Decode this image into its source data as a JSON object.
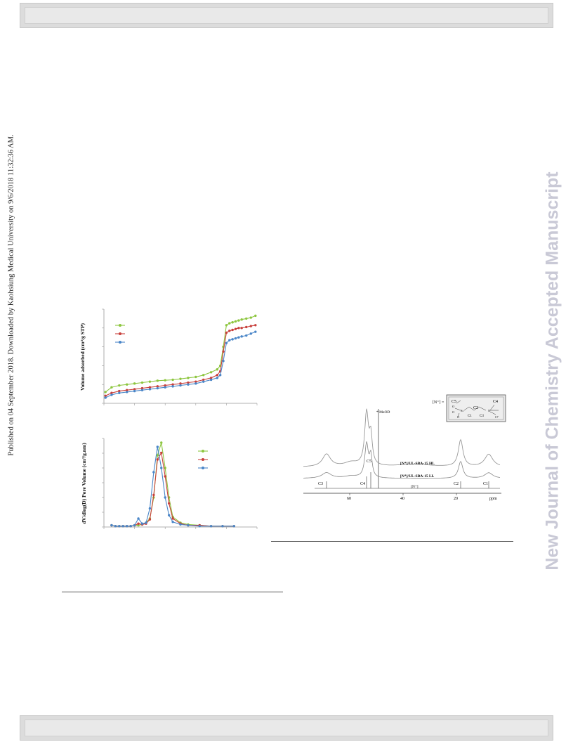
{
  "side_note": "Published on 04 September 2018. Downloaded by Kaohsiung Medical University on 9/6/2018 11:32:36 AM.",
  "watermark": "New Journal of Chemistry Accepted Manuscript",
  "figures": {
    "isotherm": {
      "ylabel": "Volume adsorbed (cm³/g STP)",
      "series_colors": [
        "#8dc63f",
        "#c8403c",
        "#4a86c8"
      ]
    },
    "psd": {
      "ylabel": "dV/dlog(D) Pore Volume (cm³/g.nm)",
      "series_colors": [
        "#8dc63f",
        "#c8403c",
        "#4a86c8"
      ]
    },
    "nmr": {
      "structure_label": "[N⁺] =",
      "atoms": [
        "C5",
        "O",
        "Si",
        "O",
        "O",
        "C2",
        "C1",
        "C3",
        "N",
        "C4",
        "C7"
      ],
      "annotation_meod": "* MeOD",
      "trace_labels": [
        "[N⁺]/UL-SBA-15 HL",
        "[N⁺]/UL-SBA-15 LL"
      ],
      "peak_labels": [
        "C3",
        "C4",
        "C5",
        "[N⁺]",
        "C2",
        "C1"
      ],
      "x_ticks": [
        "60",
        "40",
        "20"
      ],
      "x_unit": "ppm"
    }
  },
  "chart_data": [
    {
      "type": "line",
      "title": "",
      "xlabel": "",
      "ylabel": "Volume adsorbed (cm³/g STP)",
      "xlim": [
        0,
        1
      ],
      "series": [
        {
          "color": "#8dc63f",
          "x": [
            0.01,
            0.05,
            0.1,
            0.15,
            0.2,
            0.25,
            0.3,
            0.35,
            0.4,
            0.45,
            0.5,
            0.55,
            0.6,
            0.65,
            0.7,
            0.74,
            0.76,
            0.78,
            0.8,
            0.82,
            0.84,
            0.86,
            0.88,
            0.9,
            0.93,
            0.96,
            0.99
          ],
          "y": [
            0.12,
            0.17,
            0.19,
            0.2,
            0.21,
            0.22,
            0.23,
            0.24,
            0.245,
            0.25,
            0.26,
            0.27,
            0.28,
            0.3,
            0.33,
            0.36,
            0.4,
            0.6,
            0.83,
            0.85,
            0.86,
            0.87,
            0.88,
            0.89,
            0.9,
            0.91,
            0.93
          ]
        },
        {
          "color": "#c8403c",
          "x": [
            0.01,
            0.05,
            0.1,
            0.15,
            0.2,
            0.25,
            0.3,
            0.35,
            0.4,
            0.45,
            0.5,
            0.55,
            0.6,
            0.65,
            0.7,
            0.74,
            0.76,
            0.78,
            0.8,
            0.82,
            0.84,
            0.86,
            0.88,
            0.9,
            0.93,
            0.96,
            0.99
          ],
          "y": [
            0.08,
            0.11,
            0.13,
            0.14,
            0.15,
            0.16,
            0.17,
            0.18,
            0.19,
            0.2,
            0.21,
            0.22,
            0.23,
            0.25,
            0.27,
            0.3,
            0.34,
            0.55,
            0.75,
            0.77,
            0.78,
            0.79,
            0.8,
            0.8,
            0.81,
            0.82,
            0.83
          ]
        },
        {
          "color": "#4a86c8",
          "x": [
            0.01,
            0.05,
            0.1,
            0.15,
            0.2,
            0.25,
            0.3,
            0.35,
            0.4,
            0.45,
            0.5,
            0.55,
            0.6,
            0.65,
            0.7,
            0.74,
            0.76,
            0.78,
            0.8,
            0.82,
            0.84,
            0.86,
            0.88,
            0.9,
            0.93,
            0.96,
            0.99
          ],
          "y": [
            0.06,
            0.09,
            0.11,
            0.12,
            0.13,
            0.14,
            0.15,
            0.16,
            0.17,
            0.18,
            0.19,
            0.2,
            0.21,
            0.23,
            0.25,
            0.27,
            0.3,
            0.45,
            0.64,
            0.67,
            0.68,
            0.69,
            0.7,
            0.71,
            0.72,
            0.74,
            0.76
          ]
        }
      ]
    },
    {
      "type": "line",
      "title": "",
      "xlabel": "",
      "ylabel": "dV/dlog(D) Pore Volume (cm³/g.nm)",
      "series": [
        {
          "color": "#8dc63f",
          "x": [
            2,
            3,
            4,
            5,
            6,
            7,
            8,
            9,
            10,
            11,
            12,
            13,
            14,
            15,
            16,
            17,
            18,
            20,
            22,
            25,
            28,
            31,
            34
          ],
          "y": [
            0.02,
            0.01,
            0.01,
            0.01,
            0.01,
            0.01,
            0.02,
            0.02,
            0.03,
            0.05,
            0.1,
            0.35,
            0.85,
            1.0,
            0.7,
            0.35,
            0.12,
            0.05,
            0.03,
            0.02,
            0.01,
            0.01,
            0.01
          ]
        },
        {
          "color": "#c8403c",
          "x": [
            2,
            3,
            4,
            5,
            6,
            7,
            8,
            9,
            10,
            11,
            12,
            13,
            14,
            15,
            16,
            17,
            18,
            20,
            22,
            25,
            28,
            31,
            34
          ],
          "y": [
            0.02,
            0.01,
            0.01,
            0.01,
            0.01,
            0.01,
            0.02,
            0.04,
            0.03,
            0.04,
            0.09,
            0.38,
            0.8,
            0.88,
            0.6,
            0.28,
            0.1,
            0.04,
            0.02,
            0.02,
            0.01,
            0.01,
            0.01
          ]
        },
        {
          "color": "#4a86c8",
          "x": [
            2,
            3,
            4,
            5,
            6,
            7,
            8,
            9,
            10,
            11,
            12,
            13,
            14,
            15,
            16,
            17,
            18,
            20,
            22,
            25,
            28,
            31,
            34
          ],
          "y": [
            0.02,
            0.01,
            0.01,
            0.01,
            0.01,
            0.01,
            0.02,
            0.1,
            0.04,
            0.05,
            0.22,
            0.65,
            0.95,
            0.7,
            0.35,
            0.14,
            0.06,
            0.03,
            0.02,
            0.01,
            0.01,
            0.01,
            0.01
          ]
        }
      ]
    }
  ]
}
